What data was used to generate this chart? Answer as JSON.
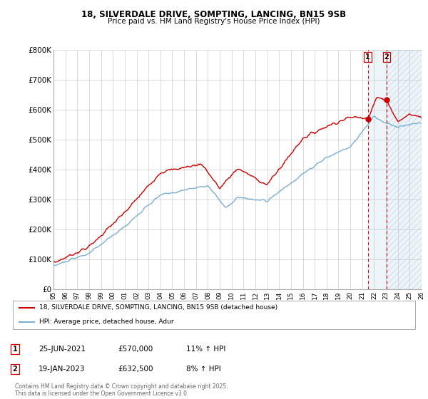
{
  "title_line1": "18, SILVERDALE DRIVE, SOMPTING, LANCING, BN15 9SB",
  "title_line2": "Price paid vs. HM Land Registry's House Price Index (HPI)",
  "legend_line1": "18, SILVERDALE DRIVE, SOMPTING, LANCING, BN15 9SB (detached house)",
  "legend_line2": "HPI: Average price, detached house, Adur",
  "transaction1_date": "25-JUN-2021",
  "transaction1_price": "£570,000",
  "transaction1_hpi": "11% ↑ HPI",
  "transaction1_year": 2021.48,
  "transaction1_value": 570000,
  "transaction2_date": "19-JAN-2023",
  "transaction2_price": "£632,500",
  "transaction2_hpi": "8% ↑ HPI",
  "transaction2_year": 2023.05,
  "transaction2_value": 632500,
  "footer": "Contains HM Land Registry data © Crown copyright and database right 2025.\nThis data is licensed under the Open Government Licence v3.0.",
  "red_color": "#cc0000",
  "blue_color": "#7bafd4",
  "vline_color": "#cc0000",
  "grid_color": "#cccccc",
  "background_color": "#ffffff",
  "hatch_color": "#c8d8e8",
  "ylim": [
    0,
    800000
  ],
  "yticks": [
    0,
    100000,
    200000,
    300000,
    400000,
    500000,
    600000,
    700000,
    800000
  ],
  "ytick_labels": [
    "£0",
    "£100K",
    "£200K",
    "£300K",
    "£400K",
    "£500K",
    "£600K",
    "£700K",
    "£800K"
  ],
  "year_start": 1995,
  "year_end": 2026,
  "hpi_seed": 10,
  "red_seed": 7
}
